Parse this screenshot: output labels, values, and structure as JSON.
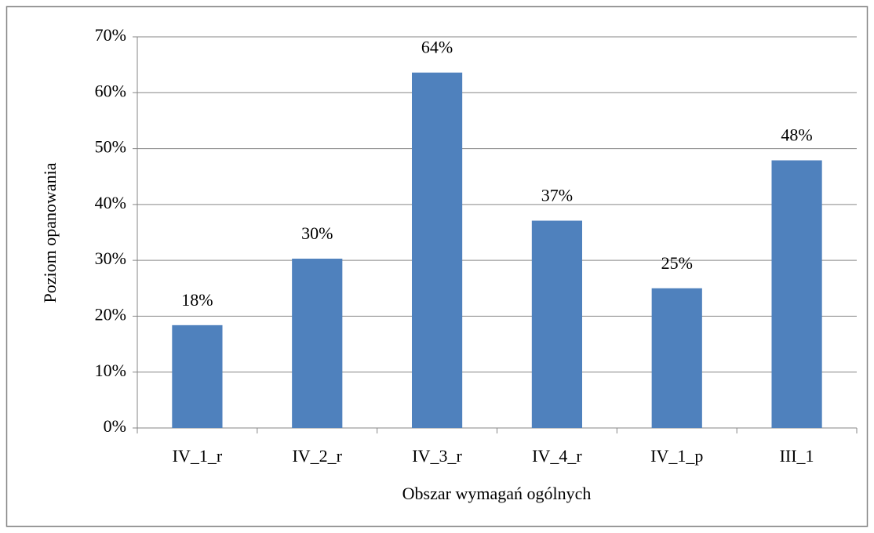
{
  "chart_data": {
    "type": "bar",
    "x_label": "Obszar wymagań ogólnych",
    "y_label": "Poziom opanowania",
    "categories": [
      "IV_1_r",
      "IV_2_r",
      "IV_3_r",
      "IV_4_r",
      "IV_1_p",
      "III_1"
    ],
    "values": [
      18.4,
      30.3,
      63.6,
      37.1,
      25.0,
      47.9
    ],
    "value_labels": [
      "18%",
      "30%",
      "64%",
      "37%",
      "25%",
      "48%"
    ],
    "color": "#4f81bd",
    "ylim": [
      0,
      70
    ],
    "yticks": [
      {
        "value": 0,
        "label": "0%"
      },
      {
        "value": 10,
        "label": "10%"
      },
      {
        "value": 20,
        "label": "20%"
      },
      {
        "value": 30,
        "label": "30%"
      },
      {
        "value": 40,
        "label": "40%"
      },
      {
        "value": 50,
        "label": "50%"
      },
      {
        "value": 60,
        "label": "60%"
      },
      {
        "value": 70,
        "label": "70%"
      }
    ],
    "grid": true
  }
}
